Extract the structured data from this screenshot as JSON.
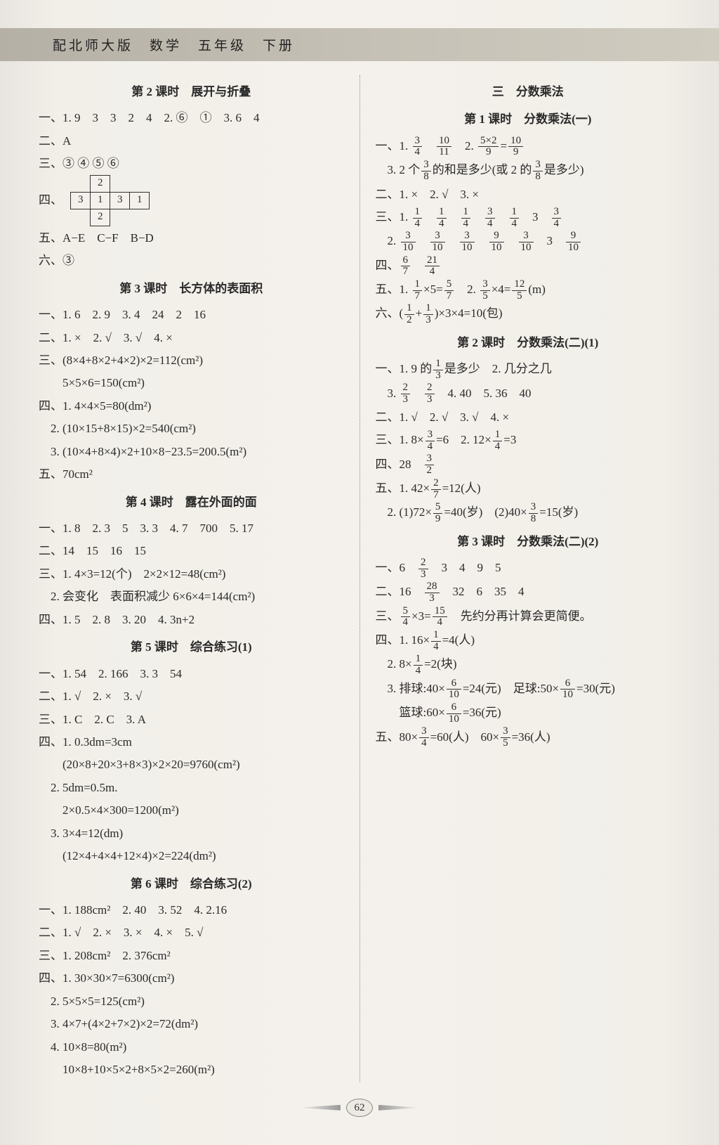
{
  "header": "配北师大版　数学　五年级　下册",
  "page_number": "62",
  "left": {
    "s2_title": "第 2 课时　展开与折叠",
    "s2_l1": "一、1. 9　3　3　2　4　2. ⑥　①　3. 6　4",
    "s2_l2": "二、A",
    "s2_l3": "三、③ ④ ⑤ ⑥",
    "s2_l4a": "四、",
    "grid": [
      "",
      "2",
      "",
      "",
      "3",
      "1",
      "3",
      "1",
      "",
      "2",
      "",
      ""
    ],
    "s2_l5": "五、A−E　C−F　B−D",
    "s2_l6": "六、③",
    "s3_title": "第 3 课时　长方体的表面积",
    "s3_l1": "一、1. 6　2. 9　3. 4　24　2　16",
    "s3_l2": "二、1. ×　2. √　3. √　4. ×",
    "s3_l3": "三、(8×4+8×2+4×2)×2=112(cm²)",
    "s3_l4": "　　5×5×6=150(cm²)",
    "s3_l5": "四、1. 4×4×5=80(dm²)",
    "s3_l6": "　2. (10×15+8×15)×2=540(cm²)",
    "s3_l7": "　3. (10×4+8×4)×2+10×8−23.5=200.5(m²)",
    "s3_l8": "五、70cm²",
    "s4_title": "第 4 课时　露在外面的面",
    "s4_l1": "一、1. 8　2. 3　5　3. 3　4. 7　700　5. 17",
    "s4_l2": "二、14　15　16　15",
    "s4_l3": "三、1. 4×3=12(个)　2×2×12=48(cm²)",
    "s4_l4": "　2. 会变化　表面积减少 6×6×4=144(cm²)",
    "s4_l5": "四、1. 5　2. 8　3. 20　4. 3n+2",
    "s5_title": "第 5 课时　综合练习(1)",
    "s5_l1": "一、1. 54　2. 166　3. 3　54",
    "s5_l2": "二、1. √　2. ×　3. √",
    "s5_l3": "三、1. C　2. C　3. A",
    "s5_l4": "四、1. 0.3dm=3cm",
    "s5_l5": "　　(20×8+20×3+8×3)×2×20=9760(cm²)",
    "s5_l6": "　2. 5dm=0.5m.",
    "s5_l7": "　　2×0.5×4×300=1200(m²)",
    "s5_l8": "　3. 3×4=12(dm)",
    "s5_l9": "　　(12×4+4×4+12×4)×2=224(dm²)",
    "s6_title": "第 6 课时　综合练习(2)",
    "s6_l1": "一、1. 188cm²　2. 40　3. 52　4. 2.16",
    "s6_l2": "二、1. √　2. ×　3. ×　4. ×　5. √",
    "s6_l3": "三、1. 208cm²　2. 376cm²",
    "s6_l4": "四、1. 30×30×7=6300(cm²)",
    "s6_l5": "　2. 5×5×5=125(cm²)",
    "s6_l6": "　3. 4×7+(4×2+7×2)×2=72(dm²)",
    "s6_l7": "　4. 10×8=80(m²)",
    "s6_l8": "　　10×8+10×5×2+8×5×2=260(m²)"
  },
  "right": {
    "u3_title": "三　分数乘法",
    "r1_title": "第 1 课时　分数乘法(一)",
    "r1_l1_a": "一、1. ",
    "r1_l1_f1n": "3",
    "r1_l1_f1d": "4",
    "r1_l1_b": "　",
    "r1_l1_f2n": "10",
    "r1_l1_f2d": "11",
    "r1_l1_c": "　2. ",
    "r1_l1_f3n": "5×2",
    "r1_l1_f3d": "9",
    "r1_l1_d": "=",
    "r1_l1_f4n": "10",
    "r1_l1_f4d": "9",
    "r1_l2_a": "　3. 2 个",
    "r1_l2_f1n": "3",
    "r1_l2_f1d": "8",
    "r1_l2_b": "的和是多少(或 2 的",
    "r1_l2_f2n": "3",
    "r1_l2_f2d": "8",
    "r1_l2_c": "是多少)",
    "r1_l3": "二、1. ×　2. √　3. ×",
    "r1_l4_a": "三、1. ",
    "r1_l4_f": [
      [
        "1",
        "4"
      ],
      [
        "1",
        "4"
      ],
      [
        "1",
        "4"
      ],
      [
        "3",
        "4"
      ],
      [
        "1",
        "4"
      ]
    ],
    "r1_l4_b": "　3　",
    "r1_l4_f6n": "3",
    "r1_l4_f6d": "4",
    "r1_l5_a": "　2. ",
    "r1_l5_f": [
      [
        "3",
        "10"
      ],
      [
        "3",
        "10"
      ],
      [
        "3",
        "10"
      ],
      [
        "9",
        "10"
      ],
      [
        "3",
        "10"
      ]
    ],
    "r1_l5_b": "　3　",
    "r1_l5_f6n": "9",
    "r1_l5_f6d": "10",
    "r1_l6_a": "四、",
    "r1_l6_f1n": "6",
    "r1_l6_f1d": "7",
    "r1_l6_b": "　",
    "r1_l6_f2n": "21",
    "r1_l6_f2d": "4",
    "r1_l7_a": "五、1. ",
    "r1_l7_f1n": "1",
    "r1_l7_f1d": "7",
    "r1_l7_b": "×5=",
    "r1_l7_f2n": "5",
    "r1_l7_f2d": "7",
    "r1_l7_c": "　2. ",
    "r1_l7_f3n": "3",
    "r1_l7_f3d": "5",
    "r1_l7_d": "×4=",
    "r1_l7_f4n": "12",
    "r1_l7_f4d": "5",
    "r1_l7_e": "(m)",
    "r1_l8_a": "六、(",
    "r1_l8_f1n": "1",
    "r1_l8_f1d": "2",
    "r1_l8_b": "+",
    "r1_l8_f2n": "1",
    "r1_l8_f2d": "3",
    "r1_l8_c": ")×3×4=10(包)",
    "r2_title": "第 2 课时　分数乘法(二)(1)",
    "r2_l1_a": "一、1. 9 的",
    "r2_l1_f1n": "1",
    "r2_l1_f1d": "3",
    "r2_l1_b": "是多少　2. 几分之几",
    "r2_l2_a": "　3. ",
    "r2_l2_f1n": "2",
    "r2_l2_f1d": "3",
    "r2_l2_b": "　",
    "r2_l2_f2n": "2",
    "r2_l2_f2d": "3",
    "r2_l2_c": "　4. 40　5. 36　40",
    "r2_l3": "二、1. √　2. √　3. √　4. ×",
    "r2_l4_a": "三、1. 8×",
    "r2_l4_f1n": "3",
    "r2_l4_f1d": "4",
    "r2_l4_b": "=6　2. 12×",
    "r2_l4_f2n": "1",
    "r2_l4_f2d": "4",
    "r2_l4_c": "=3",
    "r2_l5_a": "四、28　",
    "r2_l5_f1n": "3",
    "r2_l5_f1d": "2",
    "r2_l6_a": "五、1. 42×",
    "r2_l6_f1n": "2",
    "r2_l6_f1d": "7",
    "r2_l6_b": "=12(人)",
    "r2_l7_a": "　2. (1)72×",
    "r2_l7_f1n": "5",
    "r2_l7_f1d": "9",
    "r2_l7_b": "=40(岁)　(2)40×",
    "r2_l7_f2n": "3",
    "r2_l7_f2d": "8",
    "r2_l7_c": "=15(岁)",
    "r3_title": "第 3 课时　分数乘法(二)(2)",
    "r3_l1_a": "一、6　",
    "r3_l1_f1n": "2",
    "r3_l1_f1d": "3",
    "r3_l1_b": "　3　4　9　5",
    "r3_l2_a": "二、16　",
    "r3_l2_f1n": "28",
    "r3_l2_f1d": "3",
    "r3_l2_b": "　32　6　35　4",
    "r3_l3_a": "三、",
    "r3_l3_f1n": "5",
    "r3_l3_f1d": "4",
    "r3_l3_b": "×3=",
    "r3_l3_f2n": "15",
    "r3_l3_f2d": "4",
    "r3_l3_c": "　先约分再计算会更简便。",
    "r3_l4_a": "四、1. 16×",
    "r3_l4_f1n": "1",
    "r3_l4_f1d": "4",
    "r3_l4_b": "=4(人)",
    "r3_l5_a": "　2. 8×",
    "r3_l5_f1n": "1",
    "r3_l5_f1d": "4",
    "r3_l5_b": "=2(块)",
    "r3_l6_a": "　3. 排球:40×",
    "r3_l6_f1n": "6",
    "r3_l6_f1d": "10",
    "r3_l6_b": "=24(元)　足球:50×",
    "r3_l6_f2n": "6",
    "r3_l6_f2d": "10",
    "r3_l6_c": "=30(元)",
    "r3_l7_a": "　　篮球:60×",
    "r3_l7_f1n": "6",
    "r3_l7_f1d": "10",
    "r3_l7_b": "=36(元)",
    "r3_l8_a": "五、80×",
    "r3_l8_f1n": "3",
    "r3_l8_f1d": "4",
    "r3_l8_b": "=60(人)　60×",
    "r3_l8_f2n": "3",
    "r3_l8_f2d": "5",
    "r3_l8_c": "=36(人)"
  }
}
